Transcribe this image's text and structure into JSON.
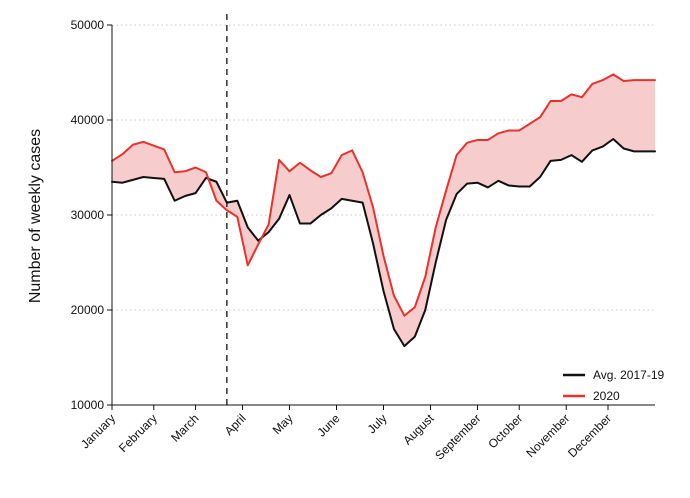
{
  "chart_data": {
    "type": "line",
    "title": "",
    "xlabel": "",
    "ylabel": "Number of weekly cases",
    "ylim": [
      10000,
      50000
    ],
    "yticks": [
      10000,
      20000,
      30000,
      40000,
      50000
    ],
    "ytick_labels": [
      "10000",
      "20000",
      "30000",
      "40000",
      "50000"
    ],
    "x_domain": [
      1,
      53
    ],
    "x_unit": "week of year",
    "x_tick_positions": [
      1,
      5,
      9,
      13.5,
      18,
      22.5,
      27,
      31.5,
      36,
      40,
      44.5,
      48.5
    ],
    "x_tick_labels": [
      "January",
      "February",
      "March",
      "April",
      "May",
      "June",
      "July",
      "August",
      "September",
      "October",
      "November",
      "December"
    ],
    "grid": "horizontal dotted",
    "legend_position": "bottom-right",
    "vline": 12,
    "fill_between": {
      "color": "#f6cccc"
    },
    "series": [
      {
        "name": "Avg. 2017-19",
        "color": "#111111",
        "x": [
          1,
          2,
          3,
          4,
          5,
          6,
          7,
          8,
          9,
          10,
          11,
          12,
          13,
          14,
          15,
          16,
          17,
          18,
          19,
          20,
          21,
          22,
          23,
          24,
          25,
          26,
          27,
          28,
          29,
          30,
          31,
          32,
          33,
          34,
          35,
          36,
          37,
          38,
          39,
          40,
          41,
          42,
          43,
          44,
          45,
          46,
          47,
          48,
          49,
          50,
          51,
          52,
          53
        ],
        "values": [
          33500,
          33400,
          33700,
          34000,
          33900,
          33800,
          31500,
          32000,
          32300,
          33900,
          33500,
          31300,
          31500,
          28700,
          27300,
          28200,
          29600,
          32100,
          29100,
          29100,
          30000,
          30700,
          31700,
          31500,
          31300,
          27000,
          22000,
          18000,
          16200,
          17200,
          20000,
          25000,
          29500,
          32200,
          33300,
          33400,
          32900,
          33600,
          33100,
          33000,
          33000,
          34000,
          35700,
          35800,
          36300,
          35600,
          36800,
          37200,
          38000,
          37000,
          36700,
          36700,
          36700
        ]
      },
      {
        "name": "2020",
        "color": "#e8322c",
        "x": [
          1,
          2,
          3,
          4,
          5,
          6,
          7,
          8,
          9,
          10,
          11,
          12,
          13,
          14,
          15,
          16,
          17,
          18,
          19,
          20,
          21,
          22,
          23,
          24,
          25,
          26,
          27,
          28,
          29,
          30,
          31,
          32,
          33,
          34,
          35,
          36,
          37,
          38,
          39,
          40,
          41,
          42,
          43,
          44,
          45,
          46,
          47,
          48,
          49,
          50,
          51,
          52,
          53
        ],
        "values": [
          35700,
          36400,
          37400,
          37700,
          37300,
          36900,
          34500,
          34600,
          35000,
          34500,
          31500,
          30500,
          29800,
          24700,
          26900,
          29000,
          35800,
          34600,
          35500,
          34700,
          34000,
          34400,
          36300,
          36800,
          34500,
          30800,
          25700,
          21500,
          19400,
          20300,
          23500,
          28700,
          32600,
          36300,
          37600,
          37900,
          37900,
          38600,
          38900,
          38900,
          39600,
          40300,
          42000,
          42000,
          42700,
          42400,
          43800,
          44200,
          44800,
          44100,
          44200,
          44200,
          44200
        ]
      }
    ]
  }
}
